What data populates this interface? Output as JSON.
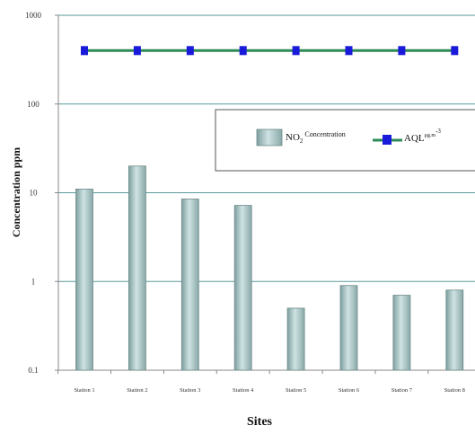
{
  "chart_data": {
    "type": "bar",
    "xlabel": "Sites",
    "ylabel": "Concentration ppm",
    "y_scale": "log",
    "ylim": [
      0.1,
      1000
    ],
    "y_ticks": [
      0.1,
      1,
      10,
      100,
      1000
    ],
    "y_tick_labels": [
      "0.1",
      "1",
      "10",
      "100",
      "1000"
    ],
    "grid": "horizontal",
    "categories": [
      "Station 1",
      "Station 2",
      "Station 3",
      "Station 4",
      "Station 5",
      "Station 6",
      "Station 7",
      "Station 8"
    ],
    "series": [
      {
        "name": "NO2 Concentration",
        "type": "bar",
        "color": "#a9c6c6",
        "values": [
          11,
          20,
          8.5,
          7.2,
          0.5,
          0.9,
          0.7,
          0.8
        ]
      },
      {
        "name": "AQL",
        "type": "line",
        "color": "#2e8b57",
        "marker_color": "#1a1adb",
        "values": [
          400,
          400,
          400,
          400,
          400,
          400,
          400,
          400
        ]
      }
    ],
    "legend": {
      "position": "top-right",
      "bar_label_main": "NO",
      "bar_label_sub": "2",
      "bar_label_sup": " Concentration",
      "line_label_main": "AQL",
      "line_label_sup": "μg.m",
      "line_label_sup2": "-3"
    }
  }
}
